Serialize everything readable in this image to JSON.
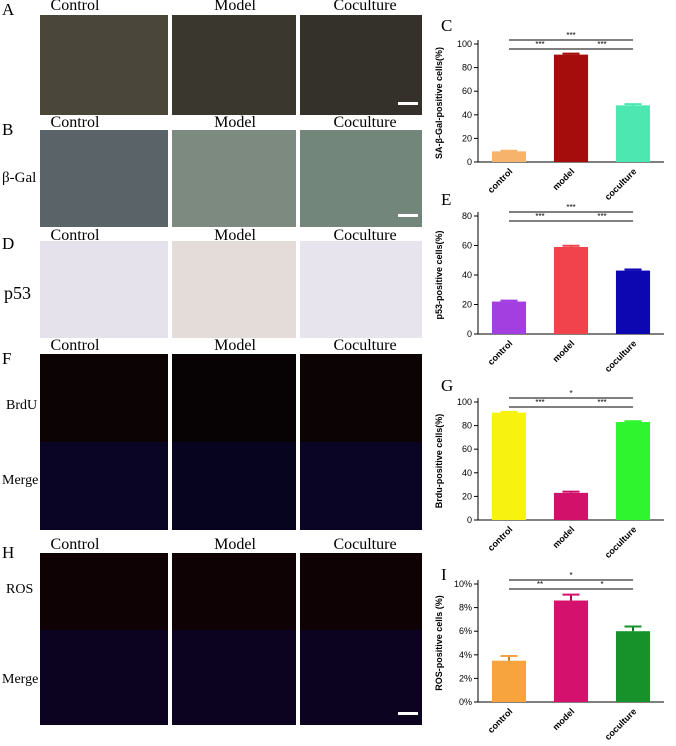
{
  "panels": [
    {
      "id": "A",
      "columns": [
        "Control",
        "Model",
        "Coculture"
      ],
      "row_labels": []
    },
    {
      "id": "B",
      "columns": [
        "Control",
        "Model",
        "Coculture"
      ],
      "row_labels": [
        "β-Gal"
      ]
    },
    {
      "id": "D",
      "columns": [
        "Control",
        "Model",
        "Coculture"
      ],
      "row_labels": [
        "p53"
      ]
    },
    {
      "id": "F",
      "columns": [
        "Control",
        "Model",
        "Coculture"
      ],
      "row_labels": [
        "BrdU",
        "Merge"
      ]
    },
    {
      "id": "H",
      "columns": [
        "Control",
        "Model",
        "Coculture"
      ],
      "row_labels": [
        "ROS",
        "Merge"
      ]
    }
  ],
  "chart_data": [
    {
      "panel": "C",
      "type": "bar",
      "categories": [
        "control",
        "model",
        "coculture"
      ],
      "values": [
        9,
        91,
        48
      ],
      "errors": [
        0.5,
        0.8,
        1
      ],
      "ylabel": "SA-β-Gal-positive cells(%)",
      "ylim": [
        0,
        100
      ],
      "yticks": [
        0,
        20,
        40,
        60,
        80,
        100
      ],
      "colors": [
        "#f6b36b",
        "#a50d0d",
        "#4de8b1"
      ],
      "sig": [
        {
          "a": 0,
          "b": 2,
          "label": "***",
          "level": 0
        },
        {
          "a": 0,
          "b": 1,
          "label": "***",
          "level": 1
        },
        {
          "a": 1,
          "b": 2,
          "label": "***",
          "level": 1
        }
      ]
    },
    {
      "panel": "E",
      "type": "bar",
      "categories": [
        "control",
        "model",
        "coculture"
      ],
      "values": [
        22,
        59,
        43
      ],
      "errors": [
        0.6,
        0.8,
        0.7
      ],
      "ylabel": "p53-positive cells(%)",
      "ylim": [
        0,
        80
      ],
      "yticks": [
        0,
        20,
        40,
        60,
        80
      ],
      "colors": [
        "#a33ee0",
        "#f0434b",
        "#0c07b0"
      ],
      "sig": [
        {
          "a": 0,
          "b": 2,
          "label": "***",
          "level": 0
        },
        {
          "a": 0,
          "b": 1,
          "label": "***",
          "level": 1
        },
        {
          "a": 1,
          "b": 2,
          "label": "***",
          "level": 1
        }
      ]
    },
    {
      "panel": "G",
      "type": "bar",
      "categories": [
        "control",
        "model",
        "coculture"
      ],
      "values": [
        91,
        23,
        83
      ],
      "errors": [
        0.6,
        1,
        0.7
      ],
      "ylabel": "Brdu-positive cells(%)",
      "ylim": [
        0,
        100
      ],
      "yticks": [
        0,
        20,
        40,
        60,
        80,
        100
      ],
      "colors": [
        "#f7f20f",
        "#d2116a",
        "#2ef52e"
      ],
      "sig": [
        {
          "a": 0,
          "b": 2,
          "label": "*",
          "level": 0
        },
        {
          "a": 0,
          "b": 1,
          "label": "***",
          "level": 1
        },
        {
          "a": 1,
          "b": 2,
          "label": "***",
          "level": 1
        }
      ]
    },
    {
      "panel": "I",
      "type": "bar",
      "categories": [
        "control",
        "model",
        "coculture"
      ],
      "values": [
        3.5,
        8.6,
        6.0
      ],
      "errors": [
        0.4,
        0.5,
        0.4
      ],
      "ylabel": "ROS-positive cells (%)",
      "ylim": [
        0,
        10
      ],
      "yticks": [
        0,
        2,
        4,
        6,
        8,
        10
      ],
      "yunit": "%",
      "colors": [
        "#f7a33e",
        "#d4116c",
        "#17922a"
      ],
      "sig": [
        {
          "a": 0,
          "b": 2,
          "label": "*",
          "level": 0
        },
        {
          "a": 0,
          "b": 1,
          "label": "**",
          "level": 1
        },
        {
          "a": 1,
          "b": 2,
          "label": "*",
          "level": 1
        }
      ]
    }
  ],
  "colors": {
    "phase_bg": "#3c3a33",
    "stain_bg": "#e8e4ee",
    "fluor_bg": "#050208"
  }
}
